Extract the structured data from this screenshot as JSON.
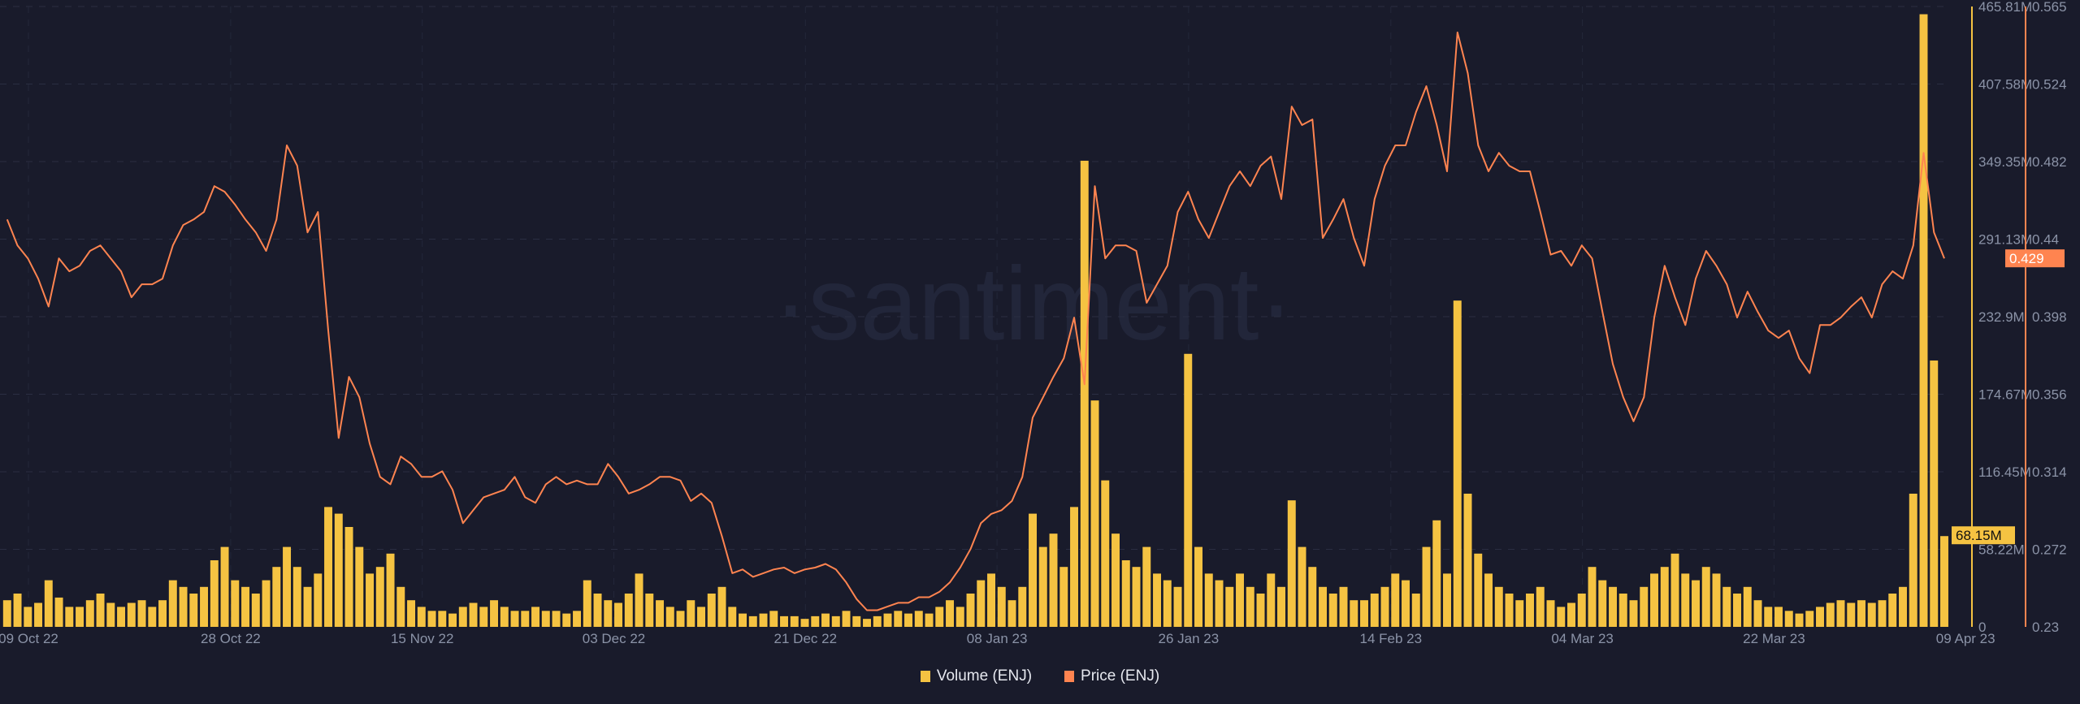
{
  "chart_data": {
    "type": "bar+line",
    "watermark": "·santiment·",
    "x_start": "2022-10-07",
    "x_end": "2023-04-07",
    "x_tick_labels": [
      {
        "date": "2022-10-09",
        "label": "09 Oct 22"
      },
      {
        "date": "2022-10-28",
        "label": "28 Oct 22"
      },
      {
        "date": "2022-11-15",
        "label": "15 Nov 22"
      },
      {
        "date": "2022-12-03",
        "label": "03 Dec 22"
      },
      {
        "date": "2022-12-21",
        "label": "21 Dec 22"
      },
      {
        "date": "2023-01-08",
        "label": "08 Jan 23"
      },
      {
        "date": "2023-01-26",
        "label": "26 Jan 23"
      },
      {
        "date": "2023-02-14",
        "label": "14 Feb 23"
      },
      {
        "date": "2023-03-04",
        "label": "04 Mar 23"
      },
      {
        "date": "2023-03-22",
        "label": "22 Mar 23"
      },
      {
        "date": "2023-04-09",
        "label": "09 Apr 23"
      }
    ],
    "y_volume": {
      "range": [
        0,
        465.81
      ],
      "unit": "M",
      "tick_labels": [
        "0",
        "58.22M",
        "116.45M",
        "174.67M",
        "232.9M",
        "291.13M",
        "349.35M",
        "407.58M",
        "465.81M"
      ]
    },
    "y_price": {
      "range": [
        0.23,
        0.565
      ],
      "tick_labels": [
        "0.23",
        "0.272",
        "0.314",
        "0.356",
        "0.398",
        "0.44",
        "0.482",
        "0.524",
        "0.565"
      ]
    },
    "grid": true,
    "legend_placement": "bottom",
    "series": [
      {
        "name": "Volume (ENJ)",
        "type": "bar",
        "axis": "volume",
        "color": "#f5c342",
        "last_value_label": "68.15M",
        "last_value": 68.15,
        "values_millions": [
          20,
          25,
          15,
          18,
          35,
          22,
          15,
          15,
          20,
          25,
          18,
          15,
          18,
          20,
          15,
          20,
          35,
          30,
          25,
          30,
          50,
          60,
          35,
          30,
          25,
          35,
          45,
          60,
          45,
          30,
          40,
          90,
          85,
          75,
          60,
          40,
          45,
          55,
          30,
          20,
          15,
          12,
          12,
          10,
          15,
          18,
          15,
          20,
          15,
          12,
          12,
          15,
          12,
          12,
          10,
          12,
          35,
          25,
          20,
          18,
          25,
          40,
          25,
          20,
          15,
          12,
          20,
          15,
          25,
          30,
          15,
          10,
          8,
          10,
          12,
          8,
          8,
          6,
          8,
          10,
          8,
          12,
          8,
          6,
          8,
          10,
          12,
          10,
          12,
          10,
          15,
          20,
          15,
          25,
          35,
          40,
          30,
          20,
          30,
          85,
          60,
          70,
          45,
          90,
          350,
          170,
          110,
          70,
          50,
          45,
          60,
          40,
          35,
          30,
          205,
          60,
          40,
          35,
          30,
          40,
          30,
          25,
          40,
          30,
          95,
          60,
          45,
          30,
          25,
          30,
          20,
          20,
          25,
          30,
          40,
          35,
          25,
          60,
          80,
          40,
          245,
          100,
          55,
          40,
          30,
          25,
          20,
          25,
          30,
          20,
          15,
          18,
          25,
          45,
          35,
          30,
          25,
          20,
          30,
          40,
          45,
          55,
          40,
          35,
          45,
          40,
          30,
          25,
          30,
          20,
          15,
          15,
          12,
          10,
          12,
          15,
          18,
          20,
          18,
          20,
          18,
          20,
          25,
          30,
          100,
          460,
          200,
          68.15
        ]
      },
      {
        "name": "Price (ENJ)",
        "type": "line",
        "axis": "price",
        "color": "#ff8450",
        "last_value_label": "0.429",
        "last_value": 0.429,
        "values": [
          0.45,
          0.436,
          0.429,
          0.418,
          0.403,
          0.429,
          0.422,
          0.425,
          0.433,
          0.436,
          0.429,
          0.422,
          0.408,
          0.415,
          0.415,
          0.418,
          0.436,
          0.447,
          0.45,
          0.454,
          0.468,
          0.465,
          0.458,
          0.45,
          0.443,
          0.433,
          0.45,
          0.49,
          0.479,
          0.443,
          0.454,
          0.39,
          0.332,
          0.365,
          0.354,
          0.329,
          0.311,
          0.307,
          0.322,
          0.318,
          0.311,
          0.311,
          0.314,
          0.304,
          0.286,
          0.293,
          0.3,
          0.302,
          0.304,
          0.311,
          0.3,
          0.297,
          0.307,
          0.311,
          0.307,
          0.309,
          0.307,
          0.307,
          0.318,
          0.311,
          0.302,
          0.304,
          0.307,
          0.311,
          0.311,
          0.309,
          0.298,
          0.302,
          0.297,
          0.279,
          0.259,
          0.261,
          0.257,
          0.259,
          0.261,
          0.262,
          0.259,
          0.261,
          0.262,
          0.264,
          0.261,
          0.254,
          0.245,
          0.239,
          0.239,
          0.241,
          0.243,
          0.243,
          0.246,
          0.246,
          0.249,
          0.254,
          0.262,
          0.272,
          0.286,
          0.291,
          0.293,
          0.298,
          0.311,
          0.343,
          0.354,
          0.365,
          0.375,
          0.397,
          0.361,
          0.468,
          0.429,
          0.436,
          0.436,
          0.433,
          0.405,
          0.415,
          0.425,
          0.454,
          0.465,
          0.45,
          0.44,
          0.454,
          0.468,
          0.476,
          0.468,
          0.479,
          0.484,
          0.461,
          0.511,
          0.501,
          0.504,
          0.44,
          0.45,
          0.461,
          0.44,
          0.425,
          0.461,
          0.479,
          0.49,
          0.49,
          0.508,
          0.522,
          0.501,
          0.476,
          0.551,
          0.529,
          0.49,
          0.476,
          0.486,
          0.479,
          0.476,
          0.476,
          0.454,
          0.431,
          0.433,
          0.425,
          0.436,
          0.429,
          0.4,
          0.372,
          0.354,
          0.341,
          0.354,
          0.397,
          0.425,
          0.408,
          0.393,
          0.418,
          0.433,
          0.425,
          0.415,
          0.397,
          0.411,
          0.4,
          0.39,
          0.386,
          0.39,
          0.375,
          0.367,
          0.393,
          0.393,
          0.397,
          0.403,
          0.408,
          0.397,
          0.415,
          0.422,
          0.418,
          0.436,
          0.486,
          0.443,
          0.429
        ]
      }
    ]
  }
}
